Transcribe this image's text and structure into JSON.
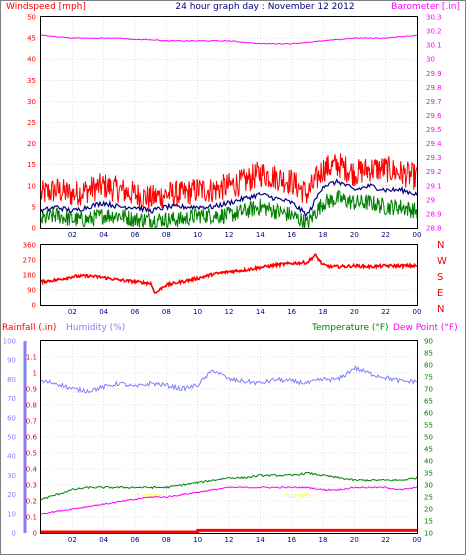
{
  "header": {
    "left_label": "Windspeed [mph]",
    "center_label": "24 hour graph day : November 12 2012",
    "right_label": "Barometer [.in]"
  },
  "panel2": {
    "directions": [
      "N",
      "W",
      "S",
      "E",
      "N"
    ]
  },
  "panel3": {
    "rain_label": "Rainfall (.in)",
    "humidity_label": "Humidity (%)",
    "temp_label": "Temperature (°F)",
    "dew_label": "Dew Point (°F)",
    "sunrise_label": "Sunrise",
    "sunset_label": "Sunset"
  },
  "colors": {
    "wind_gust": "#ff0000",
    "wind_avg": "#000080",
    "wind_low": "#008000",
    "barometer": "#ff00ff",
    "direction": "#ff0000",
    "humidity": "#8080ff",
    "temperature": "#008000",
    "dewpoint": "#ff00ff",
    "rain": "#ff0000",
    "sun_label": "#ffff00",
    "axis": "#ff0000",
    "grid": "#c0c0c0"
  },
  "chart_data": [
    {
      "type": "line",
      "x_ticks": [
        "02",
        "04",
        "06",
        "08",
        "10",
        "12",
        "14",
        "16",
        "18",
        "20",
        "22",
        "00"
      ],
      "ylim_left": [
        0,
        50
      ],
      "yticks_left": [
        "0",
        "5",
        "10",
        "15",
        "20",
        "25",
        "30",
        "35",
        "40",
        "45",
        "50"
      ],
      "ylim_right": [
        28.8,
        30.3
      ],
      "yticks_right": [
        "28.8",
        "28.9",
        "29",
        "29.1",
        "29.2",
        "29.3",
        "29.4",
        "29.5",
        "29.6",
        "29.7",
        "29.8",
        "29.9",
        "30",
        "30.1",
        "30.2",
        "30.3"
      ],
      "series": [
        {
          "axis": "left",
          "hours": [
            0,
            1,
            2,
            3,
            4,
            5,
            6,
            7,
            8,
            9,
            10,
            11,
            12,
            13,
            14,
            15,
            16,
            17,
            18,
            19,
            20,
            21,
            22,
            23,
            24
          ],
          "values": [
            8,
            9,
            8,
            9,
            10,
            9,
            8,
            7,
            8,
            8,
            9,
            9,
            10,
            11,
            13,
            12,
            11,
            8,
            14,
            15,
            13,
            14,
            14,
            13,
            12
          ]
        },
        {
          "axis": "left",
          "hours": [
            0,
            1,
            2,
            3,
            4,
            5,
            6,
            7,
            8,
            9,
            10,
            11,
            12,
            13,
            14,
            15,
            16,
            17,
            18,
            19,
            20,
            21,
            22,
            23,
            24
          ],
          "values": [
            4,
            5,
            4,
            5,
            6,
            5,
            5,
            4,
            5,
            5,
            5,
            5,
            6,
            7,
            8,
            7,
            6,
            3,
            10,
            11,
            9,
            10,
            9,
            9,
            8
          ]
        },
        {
          "axis": "left",
          "hours": [
            0,
            1,
            2,
            3,
            4,
            5,
            6,
            7,
            8,
            9,
            10,
            11,
            12,
            13,
            14,
            15,
            16,
            17,
            18,
            19,
            20,
            21,
            22,
            23,
            24
          ],
          "values": [
            2,
            3,
            2,
            2,
            3,
            3,
            2,
            2,
            2,
            2,
            3,
            3,
            3,
            4,
            5,
            4,
            3,
            1,
            6,
            7,
            6,
            6,
            5,
            5,
            4
          ]
        },
        {
          "axis": "right",
          "hours": [
            0,
            1,
            2,
            3,
            4,
            5,
            6,
            7,
            8,
            9,
            10,
            11,
            12,
            13,
            14,
            15,
            16,
            17,
            18,
            19,
            20,
            21,
            22,
            23,
            24
          ],
          "values": [
            30.17,
            30.16,
            30.15,
            30.15,
            30.15,
            30.15,
            30.14,
            30.14,
            30.13,
            30.13,
            30.13,
            30.13,
            30.13,
            30.12,
            30.11,
            30.11,
            30.11,
            30.12,
            30.13,
            30.14,
            30.15,
            30.15,
            30.15,
            30.16,
            30.17
          ]
        }
      ]
    },
    {
      "type": "line",
      "x_ticks": [
        "02",
        "04",
        "06",
        "08",
        "10",
        "12",
        "14",
        "16",
        "18",
        "20",
        "22",
        "00"
      ],
      "ylim": [
        0,
        360
      ],
      "yticks": [
        "0",
        "90",
        "180",
        "270",
        "360"
      ],
      "series": [
        {
          "hours": [
            0,
            1,
            2,
            3,
            4,
            5,
            6,
            7,
            7.3,
            7.8,
            8,
            9,
            10,
            11,
            12,
            13,
            14,
            15,
            16,
            17,
            17.5,
            18,
            18.5,
            19,
            20,
            21,
            22,
            23,
            24
          ],
          "values": [
            140,
            150,
            170,
            175,
            165,
            150,
            140,
            130,
            70,
            110,
            120,
            140,
            160,
            185,
            200,
            210,
            225,
            240,
            250,
            255,
            300,
            240,
            230,
            230,
            235,
            230,
            235,
            235,
            235
          ]
        }
      ]
    },
    {
      "type": "line",
      "x_ticks": [
        "02",
        "04",
        "06",
        "08",
        "10",
        "12",
        "14",
        "16",
        "18",
        "20",
        "22",
        "00"
      ],
      "ylim_left": [
        0,
        1.2
      ],
      "yticks_left": [
        "0",
        "0.1",
        "0.2",
        "0.3",
        "0.4",
        "0.5",
        "0.6",
        "0.7",
        "0.8",
        "0.9",
        "1",
        "1.1"
      ],
      "ylim_humidity": [
        0,
        100
      ],
      "yticks_humidity": [
        "0",
        "10",
        "20",
        "30",
        "40",
        "50",
        "60",
        "70",
        "80",
        "90",
        "100"
      ],
      "ylim_right": [
        10,
        90
      ],
      "yticks_right": [
        "10",
        "15",
        "20",
        "25",
        "30",
        "35",
        "40",
        "45",
        "50",
        "55",
        "60",
        "65",
        "70",
        "75",
        "80",
        "85",
        "90"
      ],
      "sunrise_hour": 6.9,
      "sunset_hour": 16.4,
      "series": [
        {
          "axis": "humidity",
          "hours": [
            0,
            1,
            2,
            3,
            4,
            5,
            6,
            7,
            8,
            9,
            10,
            11,
            12,
            13,
            14,
            15,
            16,
            17,
            18,
            19,
            20,
            21,
            22,
            23,
            24
          ],
          "values": [
            79,
            78,
            75,
            74,
            76,
            78,
            76,
            78,
            77,
            75,
            77,
            85,
            80,
            79,
            78,
            80,
            79,
            78,
            80,
            80,
            86,
            83,
            81,
            79,
            79
          ]
        },
        {
          "axis": "temperature",
          "hours": [
            0,
            1,
            2,
            3,
            4,
            5,
            6,
            7,
            8,
            9,
            10,
            11,
            12,
            13,
            14,
            15,
            16,
            17,
            18,
            19,
            20,
            21,
            22,
            23,
            24
          ],
          "values": [
            24,
            26,
            28,
            29,
            29,
            29,
            29,
            29,
            29,
            30,
            31,
            32,
            33,
            33,
            34,
            34,
            34,
            35,
            34,
            33,
            32,
            32,
            32,
            32,
            33
          ]
        },
        {
          "axis": "temperature",
          "hours": [
            0,
            1,
            2,
            3,
            4,
            5,
            6,
            7,
            8,
            9,
            10,
            11,
            12,
            13,
            14,
            15,
            16,
            17,
            18,
            19,
            20,
            21,
            22,
            23,
            24
          ],
          "values": [
            18,
            19,
            20,
            21,
            22,
            23,
            24,
            25,
            25,
            26,
            27,
            28,
            29,
            29,
            29,
            29,
            29,
            29,
            28,
            28,
            29,
            29,
            29,
            28,
            29
          ]
        },
        {
          "axis": "left",
          "hours": [
            0,
            10,
            10,
            24
          ],
          "values": [
            0,
            0,
            0.01,
            0.01
          ]
        }
      ]
    }
  ]
}
